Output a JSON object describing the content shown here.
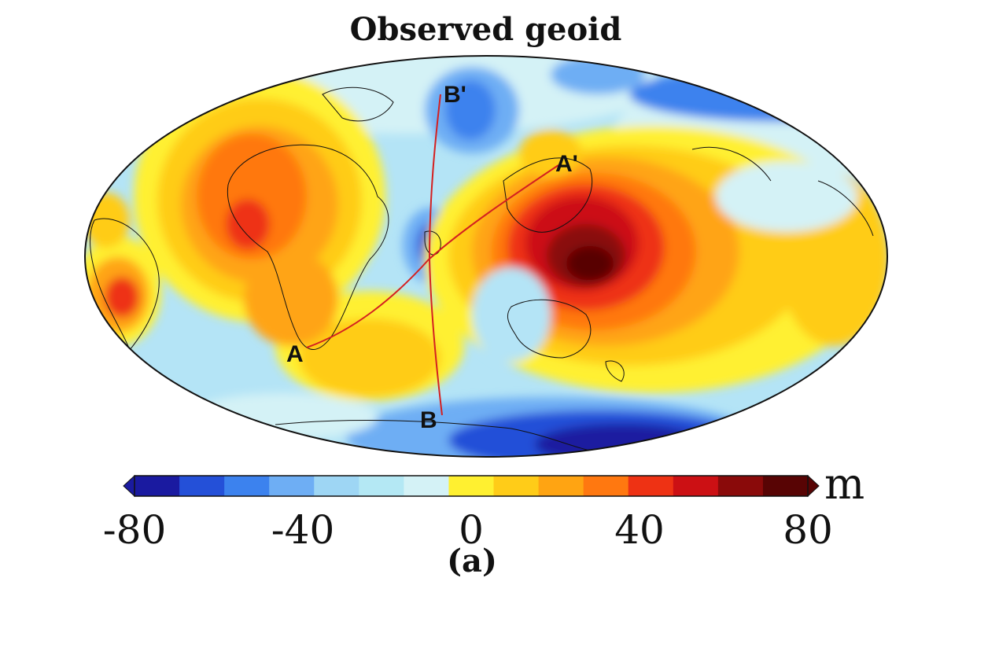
{
  "title": "Observed geoid",
  "panel_label": "(a)",
  "colorbar": {
    "unit": "m",
    "ticks": [
      "-80",
      "-40",
      "0",
      "40",
      "80"
    ],
    "min": -80,
    "max": 80,
    "colors": [
      "#1a1aa0",
      "#2450d8",
      "#3c82ee",
      "#6eaef4",
      "#9ed6f4",
      "#b4e8f4",
      "#d4f2f6",
      "#fff030",
      "#ffcc18",
      "#ffa412",
      "#ff7810",
      "#ee3214",
      "#cc1014",
      "#8a0a0a",
      "#580404"
    ]
  },
  "profiles": [
    {
      "start": "A",
      "end": "A'"
    },
    {
      "start": "B",
      "end": "B'"
    }
  ],
  "map": {
    "projection": "Hammer/Mollweide",
    "field": "geoid height anomaly",
    "colors": {
      "ocean_neutral": "#b4e4f6",
      "profile_line": "#d42020",
      "coast": "#111111"
    }
  }
}
